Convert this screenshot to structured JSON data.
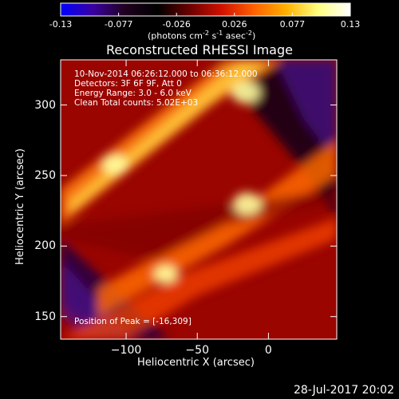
{
  "colorbar": {
    "ticks": [
      "-0.13",
      "-0.077",
      "-0.026",
      "0.026",
      "0.077",
      "0.13"
    ],
    "units_main": "(photons cm",
    "units_sup1": "-2",
    "units_mid1": " s",
    "units_sup2": "-1",
    "units_mid2": " asec",
    "units_sup3": "-2",
    "units_end": ")",
    "colors": [
      "#0000ff",
      "#3a00a0",
      "#200020",
      "#000000",
      "#6a0000",
      "#d01000",
      "#ff6000",
      "#ffb000",
      "#ffff80",
      "#ffffff"
    ]
  },
  "chart_data": {
    "type": "heatmap",
    "title": "Reconstructed RHESSI Image",
    "xlabel": "Heliocentric X (arcsec)",
    "ylabel": "Heliocentric Y (arcsec)",
    "xlim": [
      -146,
      48
    ],
    "ylim": [
      134,
      332
    ],
    "x_ticks": [
      {
        "value": -100,
        "label": "−100"
      },
      {
        "value": -50,
        "label": "−50"
      },
      {
        "value": 0,
        "label": "0"
      }
    ],
    "y_ticks": [
      {
        "value": 150,
        "label": "150"
      },
      {
        "value": 200,
        "label": "200"
      },
      {
        "value": 250,
        "label": "250"
      },
      {
        "value": 300,
        "label": "300"
      }
    ],
    "annotations": [
      "10-Nov-2014 06:26:12.000 to 06:36:12.000",
      "Detectors: 3F 6F 9F, Att 0",
      "Energy Range: 3.0 - 6.0 keV",
      "Clean     Total counts: 5.02E+03"
    ],
    "peak_label": "Position of Peak = [-16,309]",
    "peak_position": [
      -16,
      309
    ],
    "bright_sources": [
      {
        "x": -108,
        "y": 258,
        "level": 0.9
      },
      {
        "x": -15,
        "y": 230,
        "level": 1.0
      },
      {
        "x": -72,
        "y": 180,
        "level": 0.85
      },
      {
        "x": -16,
        "y": 309,
        "level": 1.0
      }
    ]
  },
  "footer": {
    "date": "28-Jul-2017 20:02"
  }
}
